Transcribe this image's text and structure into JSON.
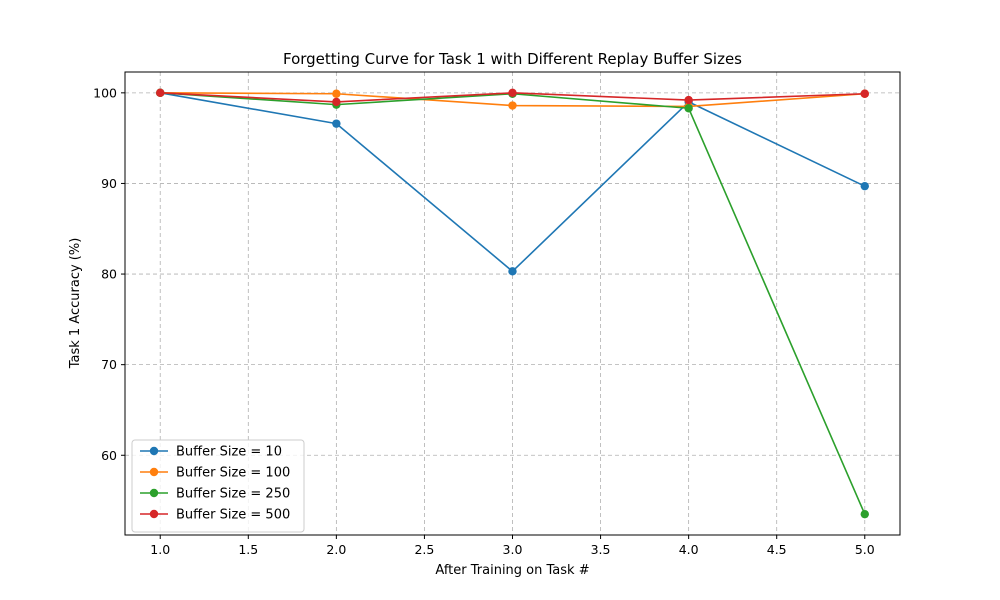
{
  "chart_data": {
    "type": "line",
    "title": "Forgetting Curve for Task 1 with Different Replay Buffer Sizes",
    "xlabel": "After Training on Task #",
    "ylabel": "Task 1 Accuracy (%)",
    "x": [
      1,
      2,
      3,
      4,
      5
    ],
    "xlim": [
      0.8,
      5.2
    ],
    "ylim": [
      51.2,
      102.3
    ],
    "xticks": [
      "1.0",
      "1.5",
      "2.0",
      "2.5",
      "3.0",
      "3.5",
      "4.0",
      "4.5",
      "5.0"
    ],
    "xtick_values": [
      1.0,
      1.5,
      2.0,
      2.5,
      3.0,
      3.5,
      4.0,
      4.5,
      5.0
    ],
    "yticks": [
      "60",
      "70",
      "80",
      "90",
      "100"
    ],
    "ytick_values": [
      60,
      70,
      80,
      90,
      100
    ],
    "grid": true,
    "legend_position": "lower-left",
    "series": [
      {
        "name": "Buffer Size = 10",
        "color": "#1f77b4",
        "values": [
          100.0,
          96.6,
          80.3,
          99.0,
          89.7
        ]
      },
      {
        "name": "Buffer Size = 100",
        "color": "#ff7f0e",
        "values": [
          100.0,
          99.9,
          98.6,
          98.5,
          99.9
        ]
      },
      {
        "name": "Buffer Size = 250",
        "color": "#2ca02c",
        "values": [
          100.0,
          98.7,
          99.9,
          98.3,
          53.5
        ]
      },
      {
        "name": "Buffer Size = 500",
        "color": "#d62728",
        "values": [
          100.0,
          99.0,
          100.0,
          99.2,
          99.9
        ]
      }
    ]
  }
}
